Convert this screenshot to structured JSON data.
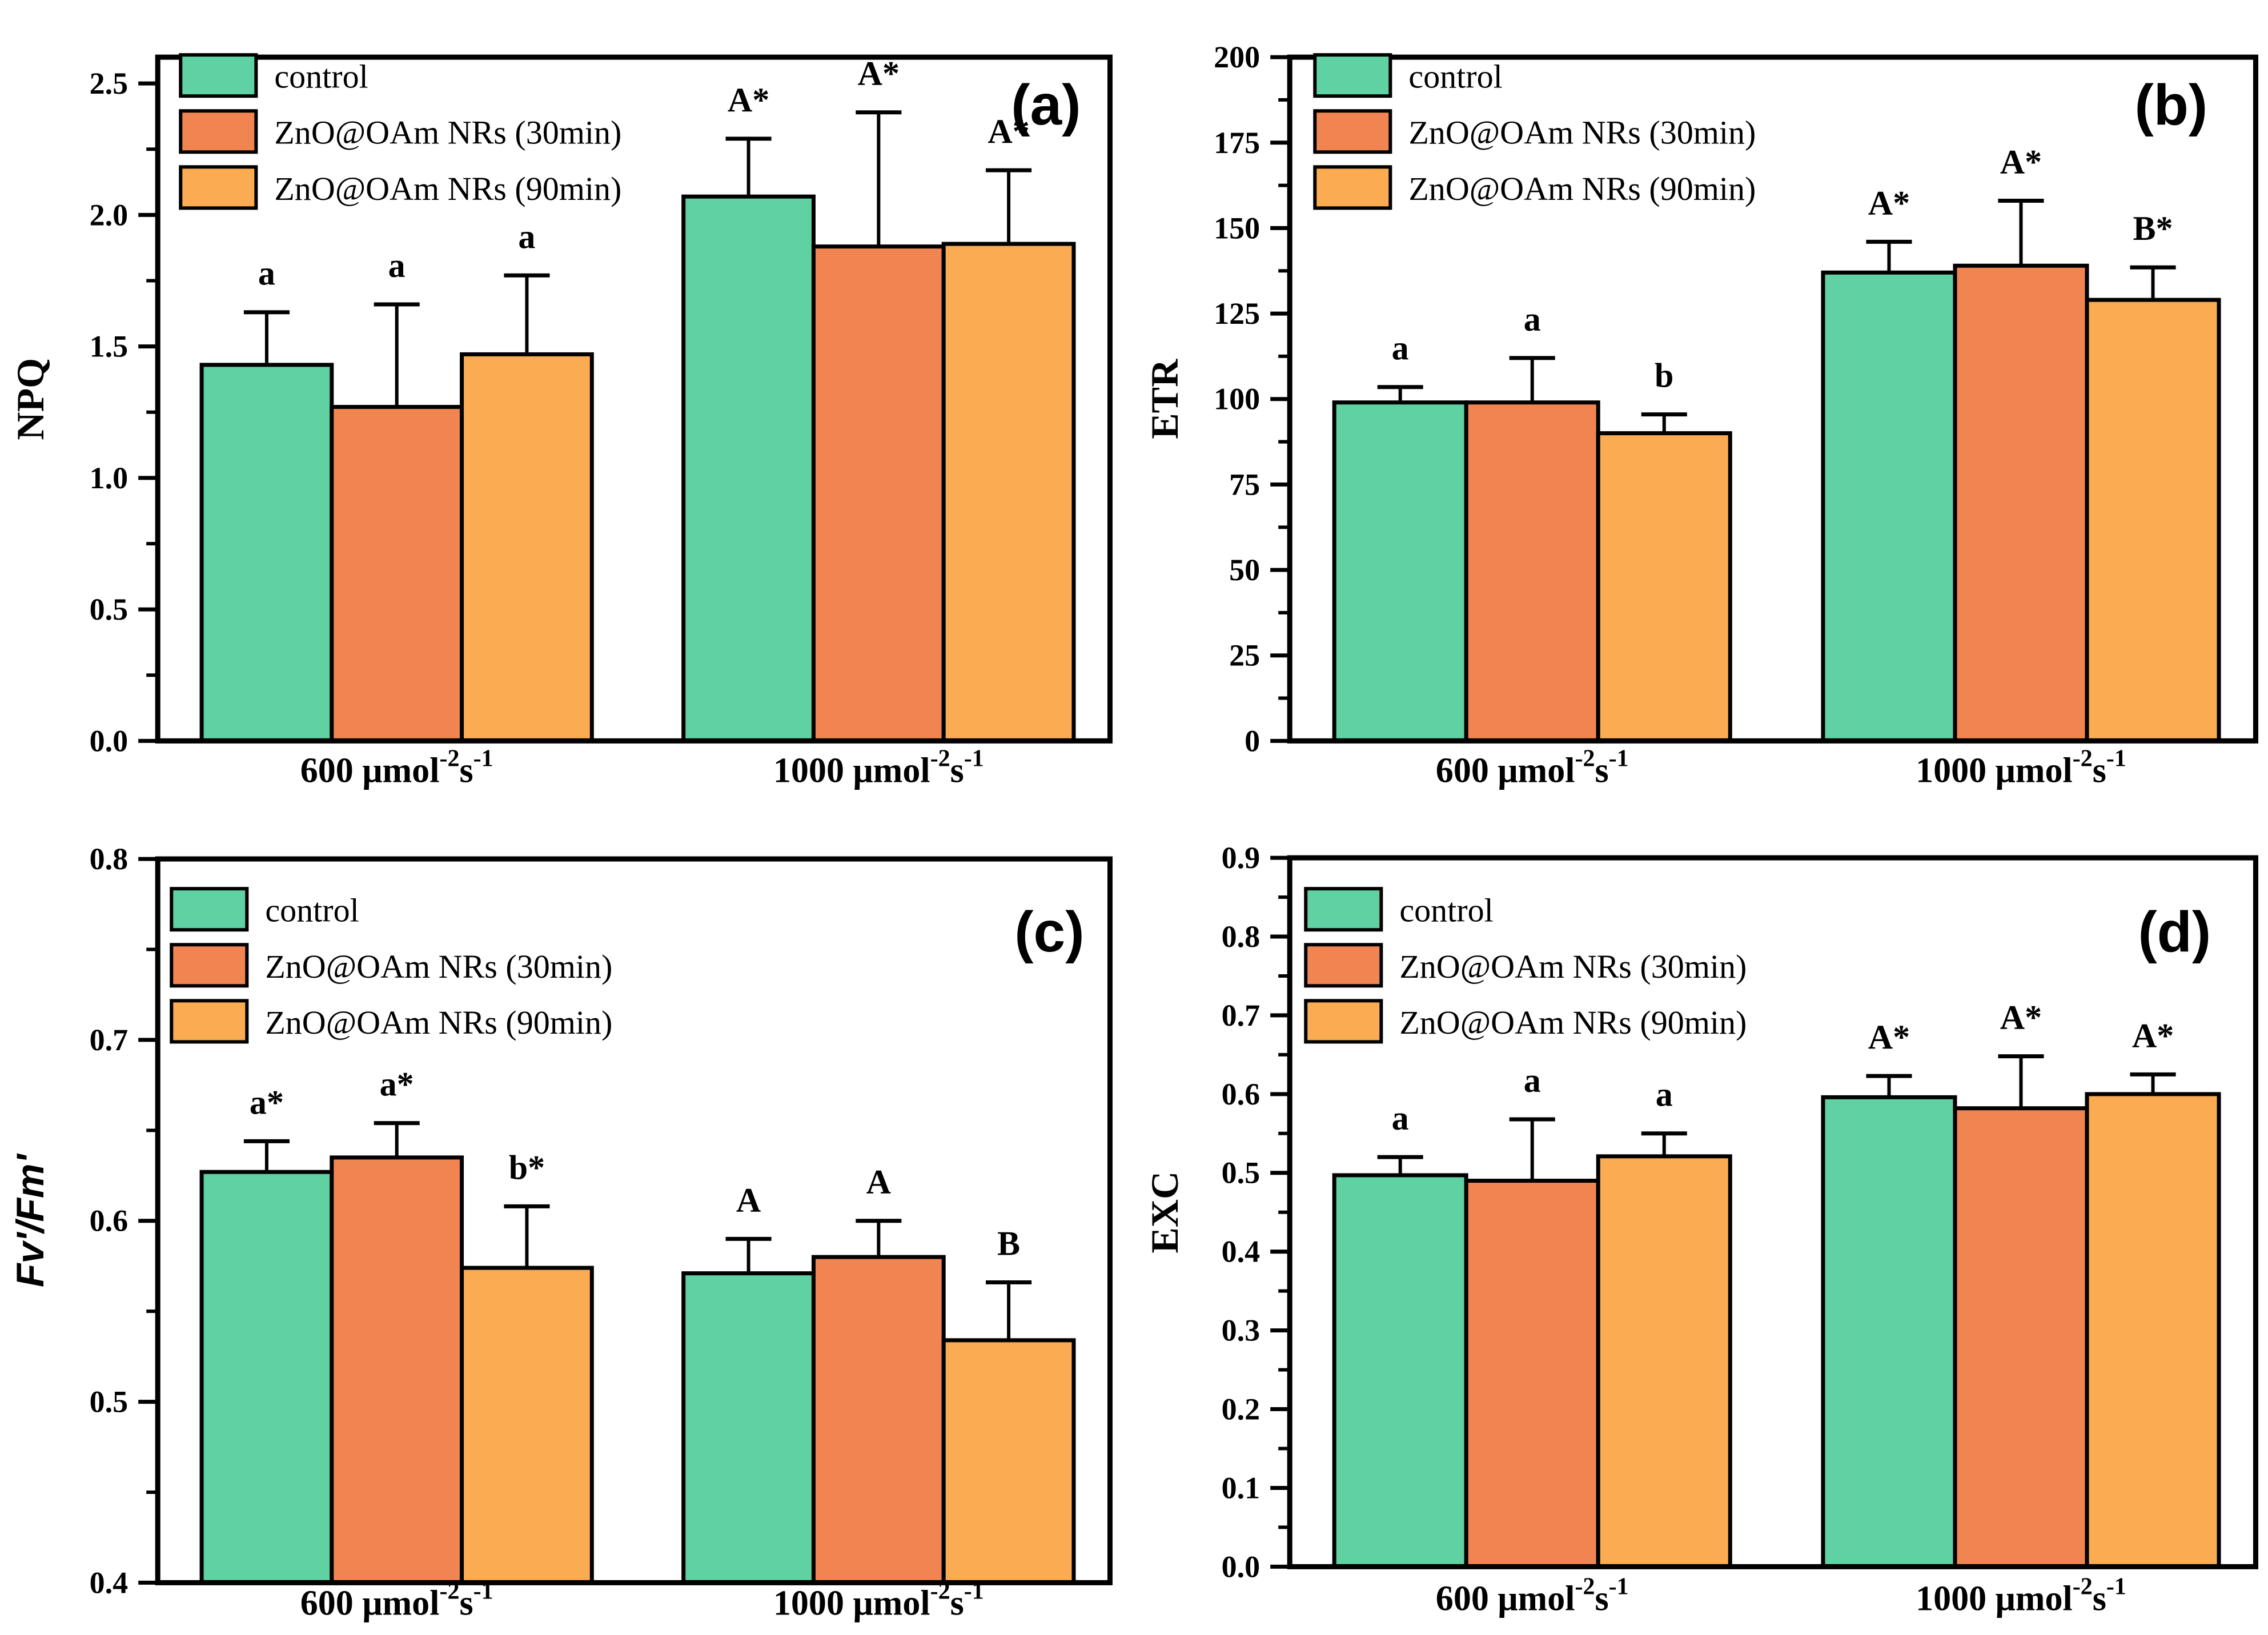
{
  "figure": {
    "background": "#ffffff"
  },
  "colors": {
    "series": [
      "#5FD1A3",
      "#F08552",
      "#FBAC52"
    ],
    "axis": "#000000",
    "bar_border": "#000000",
    "text": "#000000"
  },
  "legend_labels": [
    "control",
    "ZnO@OAm NRs (30min)",
    "ZnO@OAm NRs (90min)"
  ],
  "x_categories": [
    {
      "base": "600 μmol",
      "sup1": "-2",
      "mid": "s",
      "sup2": "-1"
    },
    {
      "base": "1000 μmol",
      "sup1": "-2",
      "mid": "s",
      "sup2": "-1"
    }
  ],
  "chart_data": [
    {
      "type": "bar",
      "panel_label": "(a)",
      "ylabel": "NPQ",
      "ylim": [
        0,
        2.6
      ],
      "minor_step": 0.25,
      "grid": false,
      "legend_position": "top-left",
      "categories": [
        "600 μmol⁻²s⁻¹",
        "1000 μmol⁻²s⁻¹"
      ],
      "yticks": [
        {
          "v": 0.0,
          "label": "0.0"
        },
        {
          "v": 0.5,
          "label": "0.5"
        },
        {
          "v": 1.0,
          "label": "1.0"
        },
        {
          "v": 1.5,
          "label": "1.5"
        },
        {
          "v": 2.0,
          "label": "2.0"
        },
        {
          "v": 2.5,
          "label": "2.5"
        }
      ],
      "series": [
        {
          "name": "control",
          "values": [
            1.43,
            2.07
          ],
          "err_top": [
            1.63,
            2.29
          ],
          "letters": [
            "a",
            "A*"
          ]
        },
        {
          "name": "ZnO@OAm NRs (30min)",
          "values": [
            1.27,
            1.88
          ],
          "err_top": [
            1.66,
            2.39
          ],
          "letters": [
            "a",
            "A*"
          ]
        },
        {
          "name": "ZnO@OAm NRs (90min)",
          "values": [
            1.47,
            1.89
          ],
          "err_top": [
            1.77,
            2.17
          ],
          "letters": [
            "a",
            "A*"
          ]
        }
      ]
    },
    {
      "type": "bar",
      "panel_label": "(b)",
      "ylabel": "ETR",
      "ylim": [
        0,
        200
      ],
      "minor_step": 12.5,
      "grid": false,
      "legend_position": "top-left",
      "categories": [
        "600 μmol⁻²s⁻¹",
        "1000 μmol⁻²s⁻¹"
      ],
      "yticks": [
        {
          "v": 0,
          "label": "0"
        },
        {
          "v": 25,
          "label": "25"
        },
        {
          "v": 50,
          "label": "50"
        },
        {
          "v": 75,
          "label": "75"
        },
        {
          "v": 100,
          "label": "100"
        },
        {
          "v": 125,
          "label": "125"
        },
        {
          "v": 150,
          "label": "150"
        },
        {
          "v": 175,
          "label": "175"
        },
        {
          "v": 200,
          "label": "200"
        }
      ],
      "series": [
        {
          "name": "control",
          "values": [
            99,
            137
          ],
          "err_top": [
            103.5,
            146
          ],
          "letters": [
            "a",
            "A*"
          ]
        },
        {
          "name": "ZnO@OAm NRs (30min)",
          "values": [
            99,
            139
          ],
          "err_top": [
            112,
            158
          ],
          "letters": [
            "a",
            "A*"
          ]
        },
        {
          "name": "ZnO@OAm NRs (90min)",
          "values": [
            90,
            129
          ],
          "err_top": [
            95.5,
            138.5
          ],
          "letters": [
            "b",
            "B*"
          ]
        }
      ]
    },
    {
      "type": "bar",
      "panel_label": "(c)",
      "ylabel": "Fv'/Fm'",
      "ylim": [
        0.4,
        0.8
      ],
      "minor_step": 0.05,
      "grid": false,
      "legend_position": "top-left",
      "categories": [
        "600 μmol⁻²s⁻¹",
        "1000 μmol⁻²s⁻¹"
      ],
      "yticks": [
        {
          "v": 0.4,
          "label": "0.4"
        },
        {
          "v": 0.5,
          "label": "0.5"
        },
        {
          "v": 0.6,
          "label": "0.6"
        },
        {
          "v": 0.7,
          "label": "0.7"
        },
        {
          "v": 0.8,
          "label": "0.8"
        }
      ],
      "series": [
        {
          "name": "control",
          "values": [
            0.627,
            0.571
          ],
          "err_top": [
            0.644,
            0.59
          ],
          "letters": [
            "a*",
            "A"
          ]
        },
        {
          "name": "ZnO@OAm NRs (30min)",
          "values": [
            0.635,
            0.58
          ],
          "err_top": [
            0.654,
            0.6
          ],
          "letters": [
            "a*",
            "A"
          ]
        },
        {
          "name": "ZnO@OAm NRs (90min)",
          "values": [
            0.574,
            0.534
          ],
          "err_top": [
            0.608,
            0.566
          ],
          "letters": [
            "b*",
            "B"
          ]
        }
      ]
    },
    {
      "type": "bar",
      "panel_label": "(d)",
      "ylabel": "EXC",
      "ylim": [
        0,
        0.9
      ],
      "minor_step": 0.05,
      "grid": false,
      "legend_position": "top-left",
      "categories": [
        "600 μmol⁻²s⁻¹",
        "1000 μmol⁻²s⁻¹"
      ],
      "yticks": [
        {
          "v": 0.0,
          "label": "0.0"
        },
        {
          "v": 0.1,
          "label": "0.1"
        },
        {
          "v": 0.2,
          "label": "0.2"
        },
        {
          "v": 0.3,
          "label": "0.3"
        },
        {
          "v": 0.4,
          "label": "0.4"
        },
        {
          "v": 0.5,
          "label": "0.5"
        },
        {
          "v": 0.6,
          "label": "0.6"
        },
        {
          "v": 0.7,
          "label": "0.7"
        },
        {
          "v": 0.8,
          "label": "0.8"
        },
        {
          "v": 0.9,
          "label": "0.9"
        }
      ],
      "series": [
        {
          "name": "control",
          "values": [
            0.497,
            0.596
          ],
          "err_top": [
            0.52,
            0.623
          ],
          "letters": [
            "a",
            "A*"
          ]
        },
        {
          "name": "ZnO@OAm NRs (30min)",
          "values": [
            0.49,
            0.582
          ],
          "err_top": [
            0.568,
            0.648
          ],
          "letters": [
            "a",
            "A*"
          ]
        },
        {
          "name": "ZnO@OAm NRs (90min)",
          "values": [
            0.521,
            0.6
          ],
          "err_top": [
            0.55,
            0.625
          ],
          "letters": [
            "a",
            "A*"
          ]
        }
      ]
    }
  ]
}
